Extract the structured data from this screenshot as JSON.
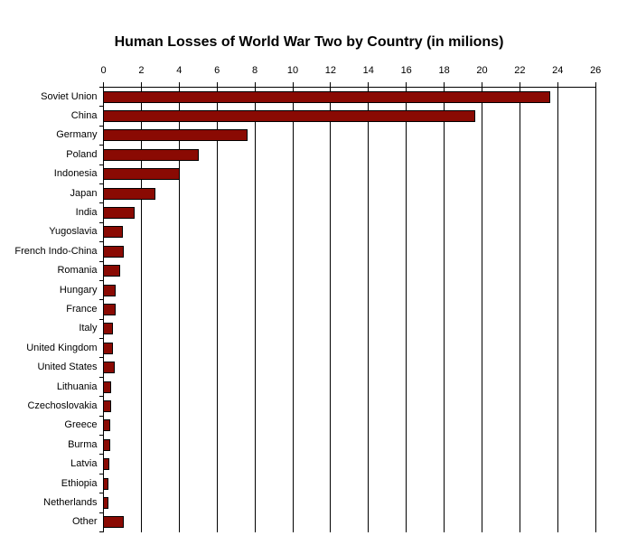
{
  "title": "Human Losses of World War Two by Country (in milions)",
  "colors": {
    "bar_fill": "#8a0a03",
    "bar_border": "#000000",
    "axis": "#000000",
    "grid": "#000000",
    "background": "#ffffff",
    "text": "#000000"
  },
  "chart_data": {
    "type": "bar",
    "orientation": "horizontal",
    "title": "Human Losses of World War Two by Country (in milions)",
    "categories": [
      "Soviet Union",
      "China",
      "Germany",
      "Poland",
      "Indonesia",
      "Japan",
      "India",
      "Yugoslavia",
      "French Indo-China",
      "Romania",
      "Hungary",
      "France",
      "Italy",
      "United Kingdom",
      "United States",
      "Lithuania",
      "Czechoslovakia",
      "Greece",
      "Burma",
      "Latvia",
      "Ethiopia",
      "Netherlands",
      "Other"
    ],
    "values": [
      23.6,
      19.6,
      7.6,
      5,
      4,
      2.7,
      1.6,
      1,
      1.05,
      0.85,
      0.6,
      0.6,
      0.5,
      0.5,
      0.55,
      0.4,
      0.4,
      0.35,
      0.35,
      0.3,
      0.25,
      0.25,
      1.05
    ],
    "xlabel": "",
    "ylabel": "",
    "xlim": [
      0,
      26
    ],
    "xticks": [
      0,
      2,
      4,
      6,
      8,
      10,
      12,
      14,
      16,
      18,
      20,
      22,
      24,
      26
    ],
    "grid": true,
    "legend": false,
    "units": "millions"
  }
}
